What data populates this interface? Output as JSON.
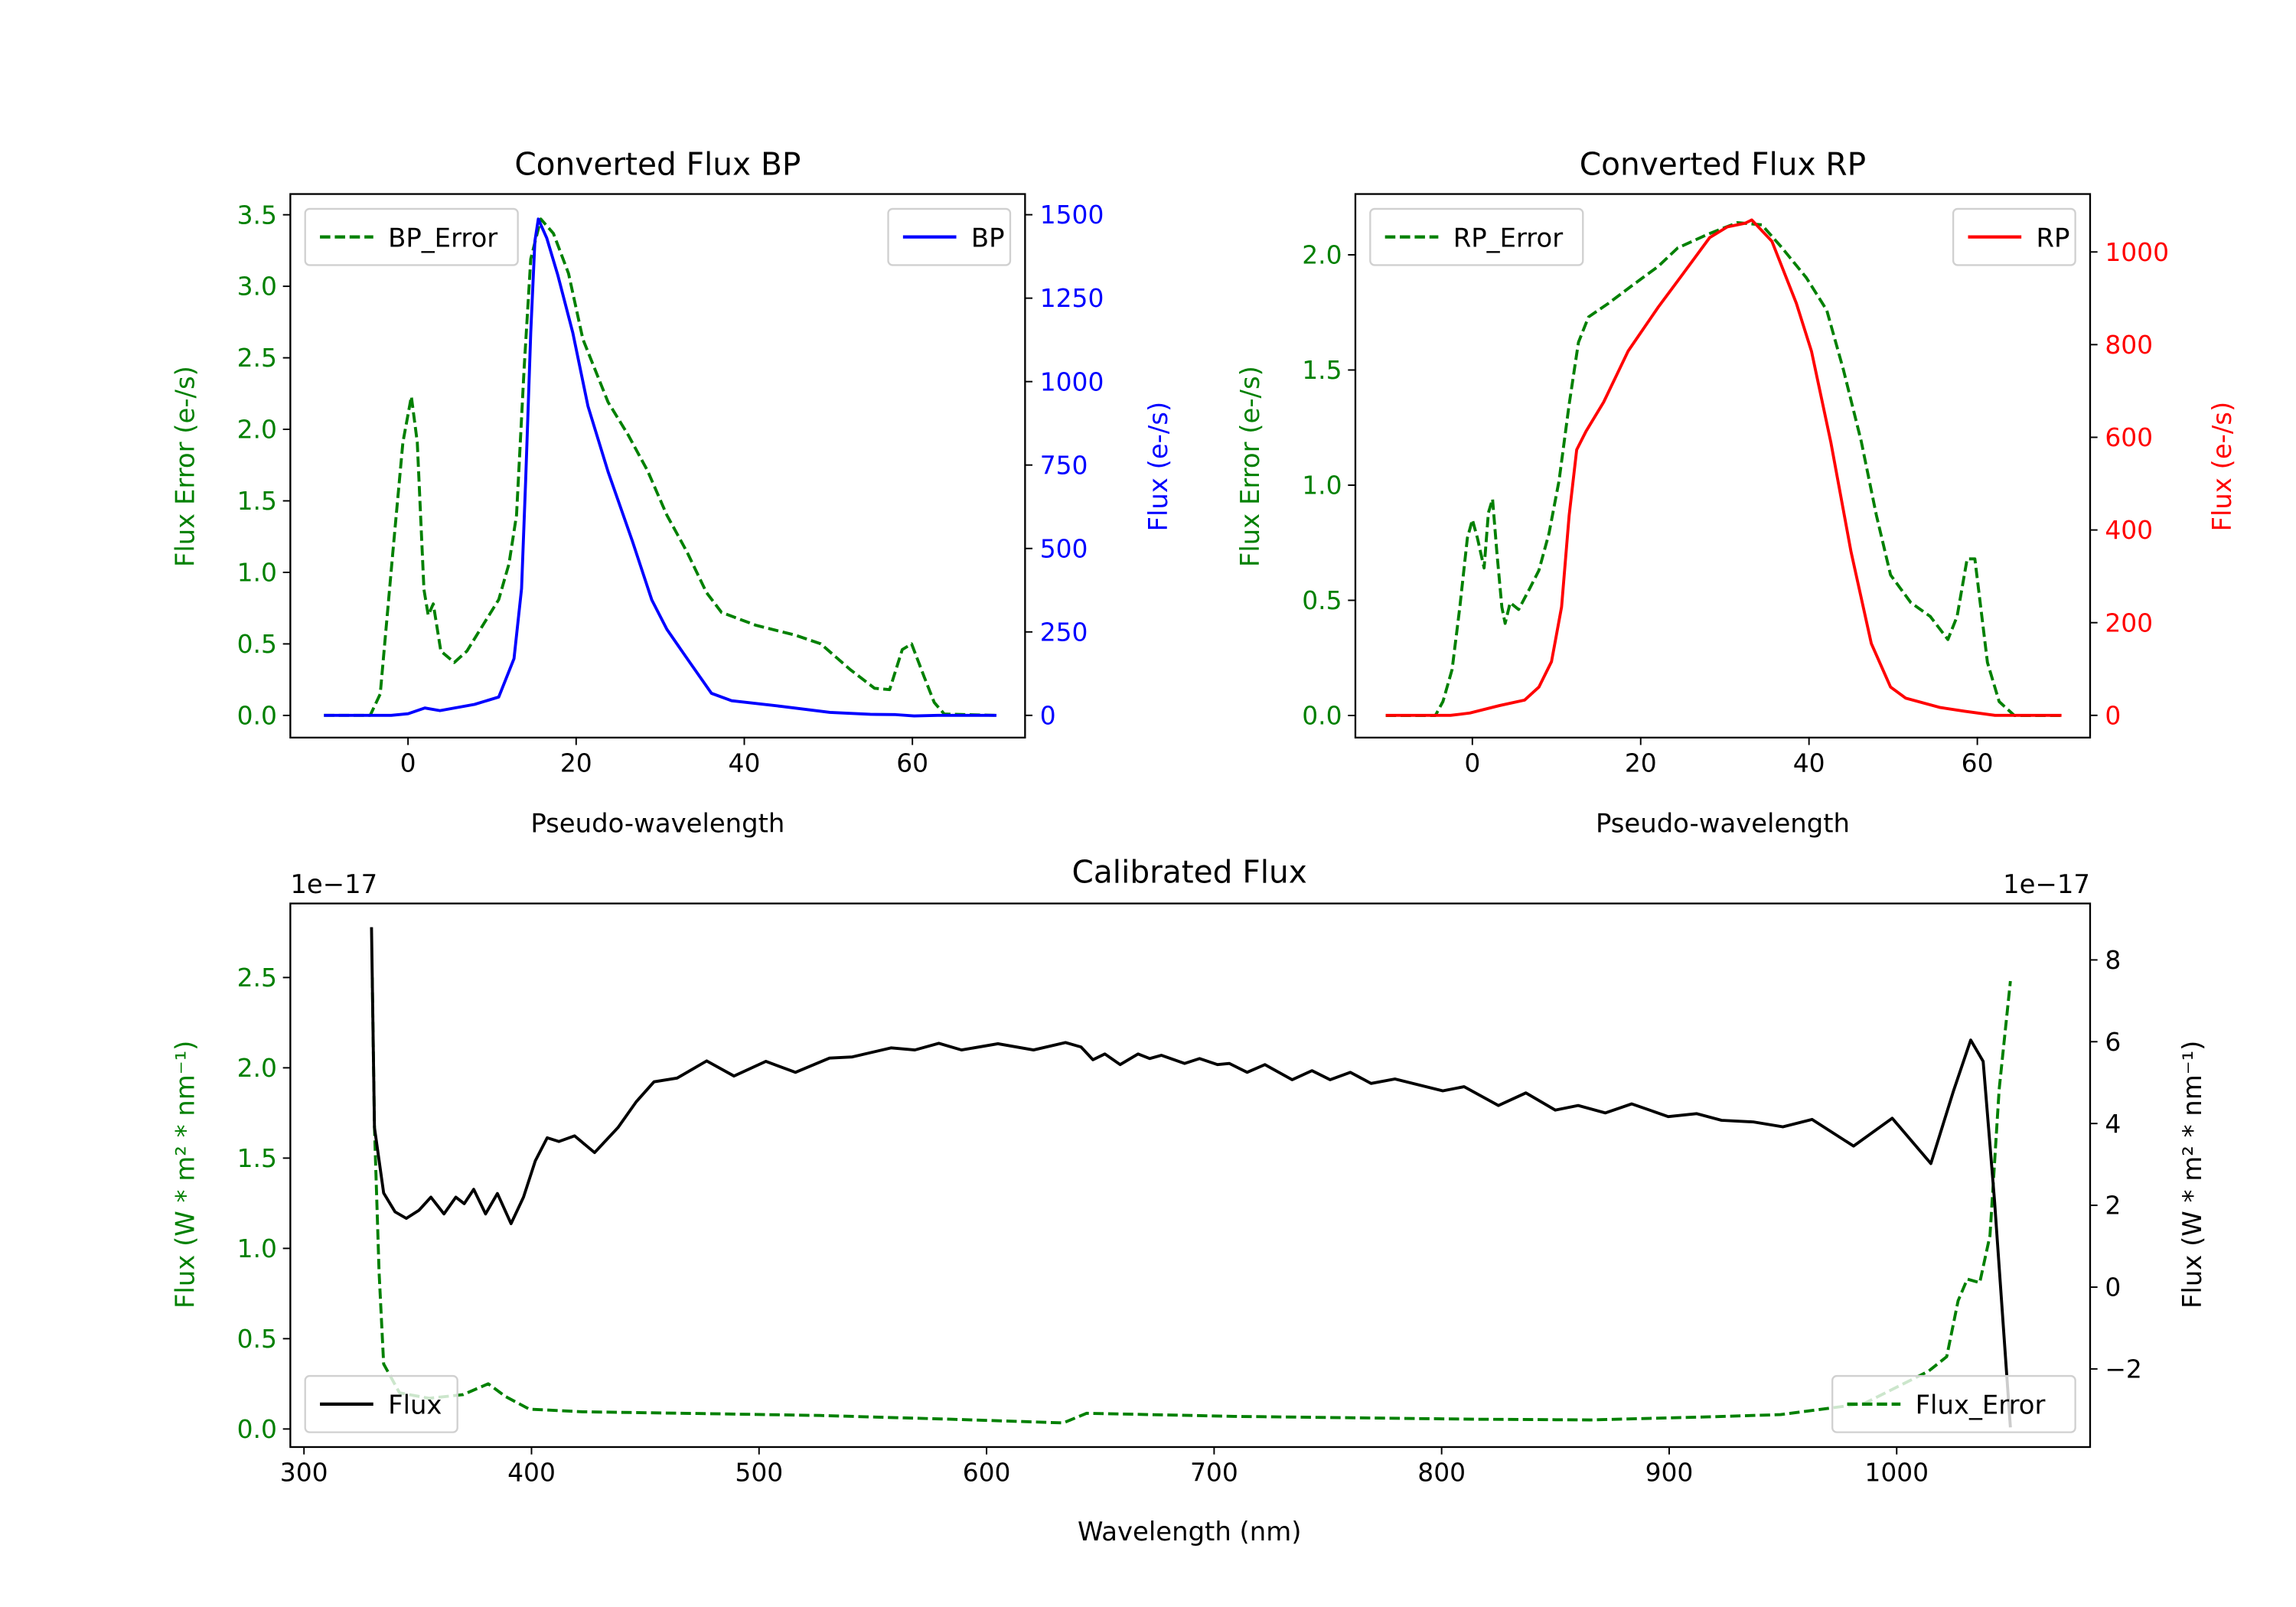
{
  "chart_data": [
    {
      "type": "line",
      "title": "Converted Flux BP",
      "xlabel": "Pseudo-wavelength",
      "ylabel_left": "Flux Error (e-/s)",
      "ylabel_right": "Flux (e-/s)",
      "xlim": [
        -14,
        73.4
      ],
      "ylim_left": [
        -0.155,
        3.645
      ],
      "ylim_right": [
        -66.6,
        1562
      ],
      "xticks": [
        0,
        20,
        40,
        60
      ],
      "xtick_labels": [
        "0",
        "20",
        "40",
        "60"
      ],
      "yticks_left": [
        0,
        0.5,
        1,
        1.5,
        2,
        2.5,
        3,
        3.5
      ],
      "ytick_labels_left": [
        "0.0",
        "0.5",
        "1.0",
        "1.5",
        "2.0",
        "2.5",
        "3.0",
        "3.5"
      ],
      "yticks_right": [
        0,
        250,
        500,
        750,
        1000,
        1250,
        1500
      ],
      "ytick_labels_right": [
        "0",
        "250",
        "500",
        "750",
        "1000",
        "1250",
        "1500"
      ],
      "left_color": "#008000",
      "right_color": "#0000ff",
      "legends": [
        {
          "position": "upper-left",
          "series": "BP_Error"
        },
        {
          "position": "upper-right",
          "series": "BP"
        }
      ],
      "series": [
        {
          "name": "BP_Error",
          "axis": "left",
          "color": "#008000",
          "style": "dashed",
          "x": [
            -10,
            -4.5,
            -3.3,
            -1.8,
            -0.6,
            0.4,
            1.1,
            1.9,
            2.4,
            3,
            3.9,
            5.5,
            7,
            9.1,
            10.8,
            12,
            12.9,
            13.8,
            14.6,
            15.8,
            17.3,
            19.1,
            20.8,
            23.8,
            26.2,
            28.5,
            30.8,
            33.2,
            35.5,
            37.3,
            41.4,
            46.1,
            49.1,
            52.6,
            55.5,
            57.3,
            58.8,
            59.9,
            61.4,
            62.6,
            63.8,
            70
          ],
          "y": [
            0,
            0,
            0.15,
            1.14,
            1.91,
            2.23,
            1.91,
            0.88,
            0.7,
            0.78,
            0.45,
            0.37,
            0.45,
            0.65,
            0.81,
            1.06,
            1.4,
            2.42,
            3.19,
            3.47,
            3.37,
            3.09,
            2.63,
            2.19,
            1.96,
            1.71,
            1.4,
            1.14,
            0.86,
            0.72,
            0.63,
            0.56,
            0.5,
            0.32,
            0.19,
            0.18,
            0.46,
            0.5,
            0.27,
            0.09,
            0.01,
            0
          ]
        },
        {
          "name": "BP",
          "axis": "right",
          "color": "#0000ff",
          "style": "solid",
          "x": [
            -10,
            -2,
            0,
            2,
            3.8,
            7.9,
            10.8,
            12.6,
            13.5,
            14,
            14.6,
            15.1,
            15.5,
            16.5,
            17.8,
            19.6,
            21.4,
            23.8,
            26.7,
            29,
            30.8,
            33.2,
            36.1,
            38.5,
            44.4,
            50.2,
            55,
            58,
            60.2,
            63,
            70
          ],
          "y": [
            0,
            0,
            5,
            22,
            14,
            33,
            55,
            170,
            380,
            708,
            1147,
            1421,
            1487,
            1430,
            1320,
            1146,
            927,
            730,
            521,
            346,
            258,
            170,
            66,
            44,
            27,
            9,
            3,
            2,
            -2,
            0,
            0
          ]
        }
      ]
    },
    {
      "type": "line",
      "title": "Converted Flux RP",
      "xlabel": "Pseudo-wavelength",
      "ylabel_left": "Flux Error (e-/s)",
      "ylabel_right": "Flux (e-/s)",
      "xlim": [
        -13.9,
        73.4
      ],
      "ylim_left": [
        -0.096,
        2.264
      ],
      "ylim_right": [
        -48,
        1125
      ],
      "xticks": [
        0,
        20,
        40,
        60
      ],
      "xtick_labels": [
        "0",
        "20",
        "40",
        "60"
      ],
      "yticks_left": [
        0,
        0.5,
        1,
        1.5,
        2
      ],
      "ytick_labels_left": [
        "0.0",
        "0.5",
        "1.0",
        "1.5",
        "2.0"
      ],
      "yticks_right": [
        0,
        200,
        400,
        600,
        800,
        1000
      ],
      "ytick_labels_right": [
        "0",
        "200",
        "400",
        "600",
        "800",
        "1000"
      ],
      "left_color": "#008000",
      "right_color": "#ff0000",
      "legends": [
        {
          "position": "upper-left",
          "series": "RP_Error"
        },
        {
          "position": "upper-right",
          "series": "RP"
        }
      ],
      "series": [
        {
          "name": "RP_Error",
          "axis": "left",
          "color": "#008000",
          "style": "dashed",
          "x": [
            -10.3,
            -4.4,
            -3.5,
            -2.4,
            -1.5,
            -0.6,
            0,
            0.6,
            1.4,
            1.9,
            2.4,
            2.9,
            3.5,
            3.9,
            4.5,
            5.5,
            6.8,
            7.9,
            9.1,
            10.3,
            11.5,
            12.6,
            13.8,
            16.2,
            19.1,
            22.1,
            24.4,
            28,
            31.5,
            34.4,
            36.8,
            39.7,
            42.1,
            44.1,
            46.2,
            48,
            49.7,
            52.1,
            54.4,
            56.5,
            57.6,
            58.8,
            59.7,
            61.2,
            62.6,
            64.4,
            70
          ],
          "y": [
            0,
            0,
            0.06,
            0.2,
            0.47,
            0.77,
            0.85,
            0.77,
            0.64,
            0.88,
            0.94,
            0.71,
            0.47,
            0.4,
            0.49,
            0.46,
            0.55,
            0.63,
            0.79,
            1.02,
            1.35,
            1.62,
            1.73,
            1.79,
            1.87,
            1.95,
            2.03,
            2.09,
            2.14,
            2.13,
            2.03,
            1.9,
            1.76,
            1.5,
            1.19,
            0.87,
            0.61,
            0.49,
            0.43,
            0.33,
            0.43,
            0.68,
            0.68,
            0.23,
            0.06,
            0,
            0
          ]
        },
        {
          "name": "RP",
          "axis": "right",
          "color": "#ff0000",
          "style": "solid",
          "x": [
            -10.3,
            -2.6,
            -0.3,
            3.2,
            6.2,
            7.9,
            9.4,
            10.6,
            11.5,
            12.4,
            13.5,
            15.6,
            18.5,
            22.1,
            25,
            28.2,
            30.3,
            32.4,
            33.2,
            35.6,
            38.5,
            40.3,
            42.6,
            45,
            47.4,
            49.7,
            51.5,
            55.6,
            58.5,
            62.1,
            70
          ],
          "y": [
            0,
            0,
            5,
            21,
            33,
            61,
            116,
            234,
            431,
            573,
            613,
            676,
            786,
            881,
            952,
            1031,
            1054,
            1062,
            1069,
            1023,
            889,
            786,
            589,
            353,
            155,
            61,
            37,
            17,
            9,
            0,
            0
          ]
        }
      ]
    },
    {
      "type": "line",
      "title": "Calibrated Flux",
      "xlabel": "Wavelength (nm)",
      "ylabel_left": "Flux (W * m² * nm⁻¹)",
      "ylabel_right": "Flux (W * m² * nm⁻¹)",
      "offset_left": "1e−17",
      "offset_right": "1e−17",
      "xlim": [
        294,
        1085
      ],
      "ylim_left": [
        -0.1,
        2.91
      ],
      "ylim_right": [
        -3.91,
        9.38
      ],
      "xticks": [
        300,
        400,
        500,
        600,
        700,
        800,
        900,
        1000
      ],
      "xtick_labels": [
        "300",
        "400",
        "500",
        "600",
        "700",
        "800",
        "900",
        "1000"
      ],
      "yticks_left": [
        0,
        0.5,
        1,
        1.5,
        2,
        2.5
      ],
      "ytick_labels_left": [
        "0.0",
        "0.5",
        "1.0",
        "1.5",
        "2.0",
        "2.5"
      ],
      "yticks_right": [
        -2,
        0,
        2,
        4,
        6,
        8
      ],
      "ytick_labels_right": [
        "−2",
        "0",
        "2",
        "4",
        "6",
        "8"
      ],
      "left_color": "#008000",
      "right_color": "#000000",
      "legends": [
        {
          "position": "lower-left",
          "series": "Flux"
        },
        {
          "position": "lower-right",
          "series": "Flux_Error"
        }
      ],
      "series": [
        {
          "name": "Flux_Error",
          "axis": "left",
          "color": "#008000",
          "style": "dashed",
          "x": [
            330,
            331,
            333,
            335,
            342,
            355,
            370,
            381,
            388.6,
            399,
            422.5,
            475,
            527,
            584,
            633.7,
            644,
            709,
            813.5,
            865.7,
            917.8,
            949,
            985.6,
            1014,
            1022,
            1027,
            1031,
            1036.5,
            1041,
            1045,
            1050
          ],
          "y": [
            2.5,
            1.67,
            0.87,
            0.36,
            0.2,
            0.17,
            0.19,
            0.25,
            0.18,
            0.11,
            0.095,
            0.085,
            0.075,
            0.054,
            0.034,
            0.087,
            0.07,
            0.054,
            0.05,
            0.067,
            0.08,
            0.14,
            0.32,
            0.4,
            0.71,
            0.83,
            0.81,
            1.07,
            1.88,
            2.48
          ]
        },
        {
          "name": "Flux",
          "axis": "right",
          "color": "#000000",
          "style": "solid",
          "x": [
            329.7,
            331,
            335,
            340,
            345,
            350.6,
            355.8,
            361.5,
            366.7,
            370.4,
            374.6,
            379.8,
            385,
            391,
            396.5,
            401.7,
            406.9,
            412,
            418.9,
            427.7,
            438,
            446,
            453.8,
            464,
            477,
            489,
            503,
            516,
            531,
            541,
            558,
            568.5,
            579,
            589,
            605,
            620.6,
            634.7,
            641.5,
            646.7,
            652,
            658.7,
            666.6,
            671.7,
            676.9,
            687,
            693.6,
            701.5,
            706.7,
            714.5,
            722.3,
            734.3,
            743,
            751,
            759.9,
            769,
            779.5,
            800.5,
            809.9,
            825,
            837,
            850,
            860,
            872,
            883.6,
            899.6,
            912,
            923,
            937,
            950,
            962.8,
            981,
            998,
            1015,
            1025,
            1032.5,
            1038,
            1043,
            1050
          ],
          "y": [
            8.8,
            3.9,
            2.3,
            1.84,
            1.68,
            1.88,
            2.2,
            1.79,
            2.2,
            2.04,
            2.39,
            1.79,
            2.29,
            1.55,
            2.2,
            3.09,
            3.65,
            3.56,
            3.7,
            3.29,
            3.9,
            4.53,
            5.02,
            5.11,
            5.53,
            5.16,
            5.52,
            5.25,
            5.6,
            5.63,
            5.85,
            5.8,
            5.96,
            5.8,
            5.95,
            5.8,
            5.98,
            5.87,
            5.56,
            5.7,
            5.44,
            5.7,
            5.59,
            5.67,
            5.47,
            5.59,
            5.44,
            5.47,
            5.25,
            5.44,
            5.07,
            5.29,
            5.07,
            5.25,
            4.98,
            5.09,
            4.8,
            4.9,
            4.44,
            4.75,
            4.33,
            4.44,
            4.26,
            4.48,
            4.17,
            4.24,
            4.08,
            4.04,
            3.92,
            4.1,
            3.45,
            4.13,
            3.02,
            4.8,
            6.04,
            5.52,
            2.1,
            -3.43
          ]
        }
      ]
    }
  ]
}
